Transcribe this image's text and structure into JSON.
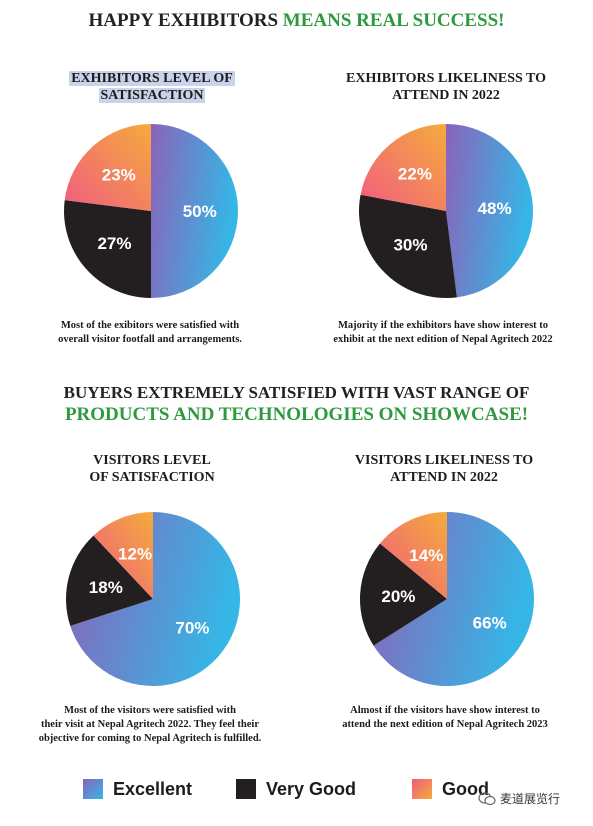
{
  "colors": {
    "excellent_start": "#8b63b9",
    "excellent_end": "#35b6e6",
    "very_good": "#231f20",
    "good_start": "#f15b80",
    "good_end": "#f4ab3c",
    "green": "#2e9a3e"
  },
  "header1": {
    "part1": "HAPPY EXHIBITORS ",
    "part2": "MEANS REAL SUCCESS!"
  },
  "header2": {
    "line1": "BUYERS EXTREMELY SATISFIED WITH VAST RANGE OF",
    "line2": "PRODUCTS AND TECHNOLOGIES ON SHOWCASE!"
  },
  "charts": [
    {
      "title_lines": [
        "EXHIBITORS LEVEL OF",
        "SATISFACTION"
      ],
      "caption_lines": [
        "Most of the exibitors were satisfied with",
        "overall visitor footfall and arrangements."
      ],
      "labels": [
        "50%",
        "27%",
        "23%"
      ]
    },
    {
      "title_lines": [
        "EXHIBITORS LIKELINESS TO",
        "ATTEND IN 2022"
      ],
      "caption_lines": [
        "Majority if the exhibitors have show interest to",
        "exhibit at the next edition of Nepal Agritech 2022"
      ],
      "labels": [
        "48%",
        "30%",
        "22%"
      ]
    },
    {
      "title_lines": [
        "VISITORS LEVEL",
        "OF SATISFACTION"
      ],
      "caption_lines": [
        "Most of the visitors were satisfied with",
        "their visit at Nepal Agritech 2022. They feel their",
        "objective for coming to Nepal Agritech is fulfilled."
      ],
      "labels": [
        "70%",
        "18%",
        "12%"
      ]
    },
    {
      "title_lines": [
        "VISITORS LIKELINESS TO",
        "ATTEND IN 2022"
      ],
      "caption_lines": [
        "Almost if the visitors have show interest to",
        "attend the next edition of Nepal Agritech 2023"
      ],
      "labels": [
        "66%",
        "20%",
        "14%"
      ]
    }
  ],
  "chart_data": [
    {
      "type": "pie",
      "title": "EXHIBITORS LEVEL OF SATISFACTION",
      "categories": [
        "Excellent",
        "Very Good",
        "Good"
      ],
      "values": [
        50,
        27,
        23
      ]
    },
    {
      "type": "pie",
      "title": "EXHIBITORS LIKELINESS TO ATTEND IN 2022",
      "categories": [
        "Excellent",
        "Very Good",
        "Good"
      ],
      "values": [
        48,
        30,
        22
      ]
    },
    {
      "type": "pie",
      "title": "VISITORS LEVEL OF SATISFACTION",
      "categories": [
        "Excellent",
        "Very Good",
        "Good"
      ],
      "values": [
        70,
        18,
        12
      ]
    },
    {
      "type": "pie",
      "title": "VISITORS LIKELINESS TO ATTEND IN 2022",
      "categories": [
        "Excellent",
        "Very Good",
        "Good"
      ],
      "values": [
        66,
        20,
        14
      ]
    }
  ],
  "legend": {
    "items": [
      "Excellent",
      "Very Good",
      "Good"
    ]
  },
  "watermark": {
    "text": "麦道展览行"
  }
}
